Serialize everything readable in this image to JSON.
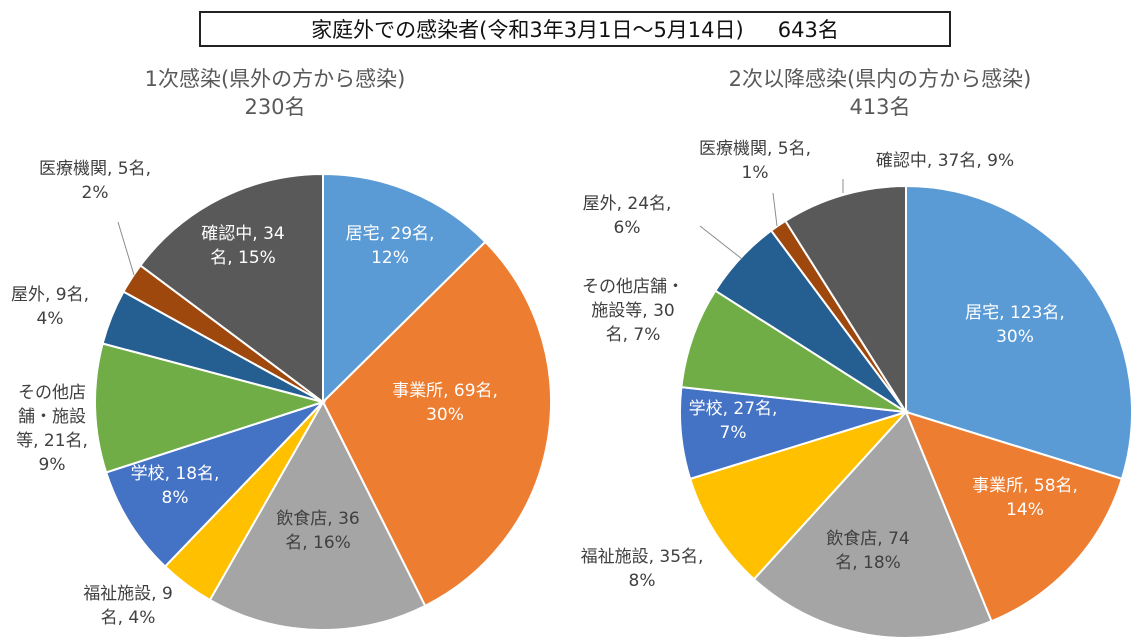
{
  "header": {
    "title": "家庭外での感染者(令和3年3月1日～5月14日)",
    "total": "643名"
  },
  "chart_data": [
    {
      "type": "pie",
      "title": "1次感染(県外の方から感染)",
      "subtitle": "230名",
      "start_angle_deg": 0,
      "direction": "clockwise",
      "slices": [
        {
          "category": "居宅",
          "value": 29,
          "percent": 12,
          "color": "#5B9BD5",
          "label_lines": [
            "居宅, 29名,",
            "12%"
          ]
        },
        {
          "category": "事業所",
          "value": 69,
          "percent": 30,
          "color": "#ED7D31",
          "label_lines": [
            "事業所, 69名,",
            "30%"
          ]
        },
        {
          "category": "飲食店",
          "value": 36,
          "percent": 16,
          "color": "#A5A5A5",
          "label_lines": [
            "飲食店, 36",
            "名, 16%"
          ]
        },
        {
          "category": "福祉施設",
          "value": 9,
          "percent": 4,
          "color": "#FFC000",
          "label_lines": [
            "福祉施設, 9",
            "名, 4%"
          ]
        },
        {
          "category": "学校",
          "value": 18,
          "percent": 8,
          "color": "#4472C4",
          "label_lines": [
            "学校, 18名,",
            "8%"
          ]
        },
        {
          "category": "その他店舗・施設等",
          "value": 21,
          "percent": 9,
          "color": "#70AD47",
          "label_lines": [
            "その他店",
            "舗・施設",
            "等, 21名,",
            "9%"
          ]
        },
        {
          "category": "屋外",
          "value": 9,
          "percent": 4,
          "color": "#255E91",
          "label_lines": [
            "屋外, 9名,",
            "4%"
          ]
        },
        {
          "category": "医療機関",
          "value": 5,
          "percent": 2,
          "color": "#9E480E",
          "label_lines": [
            "医療機関, 5名,",
            "2%"
          ]
        },
        {
          "category": "確認中",
          "value": 34,
          "percent": 15,
          "color": "#595959",
          "label_lines": [
            "確認中, 34",
            "名, 15%"
          ]
        }
      ]
    },
    {
      "type": "pie",
      "title": "2次以降感染(県内の方から感染)",
      "subtitle": "413名",
      "start_angle_deg": 0,
      "direction": "clockwise",
      "slices": [
        {
          "category": "居宅",
          "value": 123,
          "percent": 30,
          "color": "#5B9BD5",
          "label_lines": [
            "居宅, 123名,",
            "30%"
          ]
        },
        {
          "category": "事業所",
          "value": 58,
          "percent": 14,
          "color": "#ED7D31",
          "label_lines": [
            "事業所, 58名,",
            "14%"
          ]
        },
        {
          "category": "飲食店",
          "value": 74,
          "percent": 18,
          "color": "#A5A5A5",
          "label_lines": [
            "飲食店, 74",
            "名, 18%"
          ]
        },
        {
          "category": "福祉施設",
          "value": 35,
          "percent": 8,
          "color": "#FFC000",
          "label_lines": [
            "福祉施設, 35名,",
            "8%"
          ]
        },
        {
          "category": "学校",
          "value": 27,
          "percent": 7,
          "color": "#4472C4",
          "label_lines": [
            "学校, 27名,",
            "7%"
          ]
        },
        {
          "category": "その他店舗・施設等",
          "value": 30,
          "percent": 7,
          "color": "#70AD47",
          "label_lines": [
            "その他店舗・",
            "施設等, 30",
            "名, 7%"
          ]
        },
        {
          "category": "屋外",
          "value": 24,
          "percent": 6,
          "color": "#255E91",
          "label_lines": [
            "屋外, 24名,",
            "6%"
          ]
        },
        {
          "category": "医療機関",
          "value": 5,
          "percent": 1,
          "color": "#9E480E",
          "label_lines": [
            "医療機関, 5名,",
            "1%"
          ]
        },
        {
          "category": "確認中",
          "value": 37,
          "percent": 9,
          "color": "#595959",
          "label_lines": [
            "確認中, 37名, 9%"
          ]
        }
      ]
    }
  ]
}
